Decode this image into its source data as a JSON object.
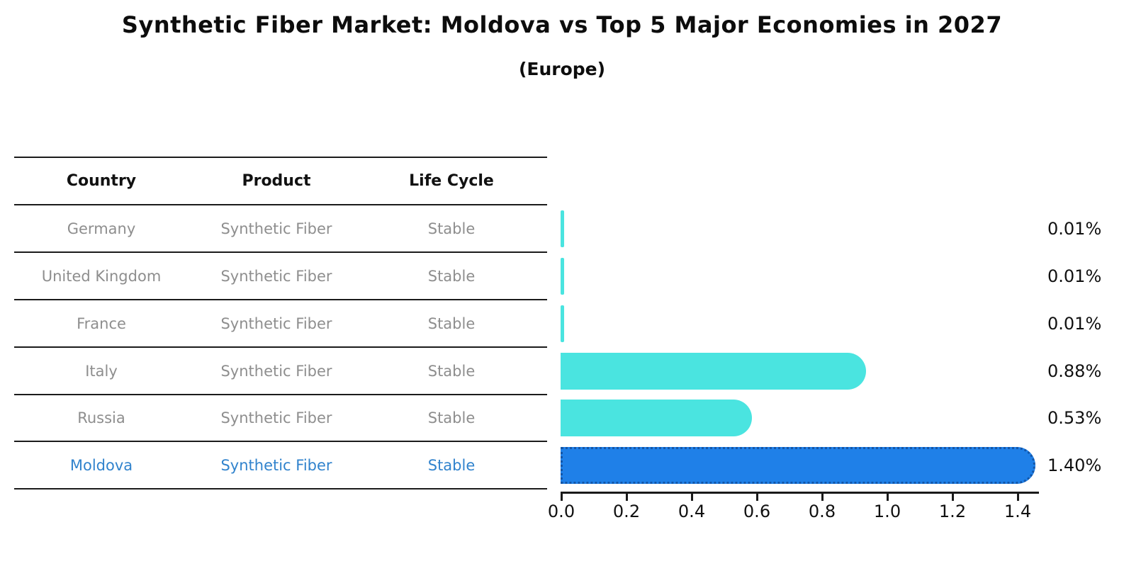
{
  "title": "Synthetic Fiber Market: Moldova vs Top 5 Major Economies in 2027",
  "subtitle": "(Europe)",
  "table": {
    "headers": [
      "Country",
      "Product",
      "Life Cycle"
    ],
    "rows": [
      {
        "country": "Germany",
        "product": "Synthetic Fiber",
        "life_cycle": "Stable",
        "highlight": false
      },
      {
        "country": "United Kingdom",
        "product": "Synthetic Fiber",
        "life_cycle": "Stable",
        "highlight": false
      },
      {
        "country": "France",
        "product": "Synthetic Fiber",
        "life_cycle": "Stable",
        "highlight": false
      },
      {
        "country": "Italy",
        "product": "Synthetic Fiber",
        "life_cycle": "Stable",
        "highlight": false
      },
      {
        "country": "Russia",
        "product": "Synthetic Fiber",
        "life_cycle": "Stable",
        "highlight": false
      },
      {
        "country": "Moldova",
        "product": "Synthetic Fiber",
        "life_cycle": "Stable",
        "highlight": true
      }
    ]
  },
  "chart_data": {
    "type": "bar",
    "orientation": "horizontal",
    "title": "Synthetic Fiber Market: Moldova vs Top 5 Major Economies in 2027",
    "subtitle": "(Europe)",
    "categories": [
      "Germany",
      "United Kingdom",
      "France",
      "Italy",
      "Russia",
      "Moldova"
    ],
    "values": [
      0.01,
      0.01,
      0.01,
      0.88,
      0.53,
      1.4
    ],
    "value_labels": [
      "0.01%",
      "0.01%",
      "0.01%",
      "0.88%",
      "0.53%",
      "1.40%"
    ],
    "xlabel": "",
    "ylabel": "",
    "xtick_labels": [
      "0.0",
      "0.2",
      "0.4",
      "0.6",
      "0.8",
      "1.0",
      "1.2",
      "1.4"
    ],
    "xticks": [
      0.0,
      0.2,
      0.4,
      0.6,
      0.8,
      1.0,
      1.2,
      1.4
    ],
    "xlim": [
      0,
      1.47
    ],
    "grid": false,
    "legend": "none",
    "highlight_index": 5
  },
  "colors": {
    "bar": "#4AE4E0",
    "highlight_bar": "#1F80E8",
    "highlight_border": "#1356A8",
    "highlight_text": "#3183CD",
    "table_text": "#8E8E8E",
    "header_text": "#111111",
    "value_text": "#111111",
    "line": "#1B1B1B"
  }
}
